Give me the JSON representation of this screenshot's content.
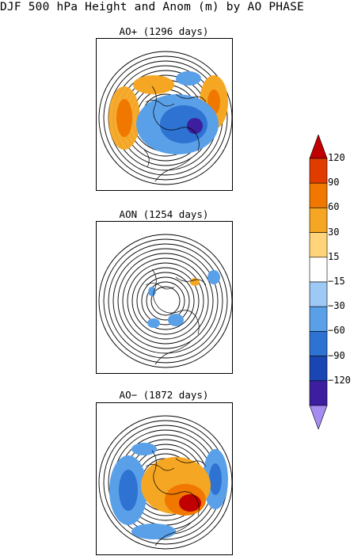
{
  "title": "DJF 500 hPa Height and Anom (m) by AO PHASE",
  "panels": [
    {
      "id": "ao_plus",
      "label": "AO+ (1296 days)"
    },
    {
      "id": "ao_neutral",
      "label": "AON (1254 days)"
    },
    {
      "id": "ao_minus",
      "label": "AO− (1872 days)"
    }
  ],
  "colorbar": {
    "labels": [
      "120",
      "90",
      "60",
      "30",
      "15",
      "−15",
      "−30",
      "−60",
      "−90",
      "−120"
    ],
    "colors": [
      "#c00000",
      "#e03c00",
      "#f07800",
      "#f5a623",
      "#ffd47a",
      "#ffffff",
      "#9ec9f5",
      "#5aa0e8",
      "#2e72d2",
      "#1a46b4",
      "#3c1e9e",
      "#a58cf0"
    ]
  }
}
